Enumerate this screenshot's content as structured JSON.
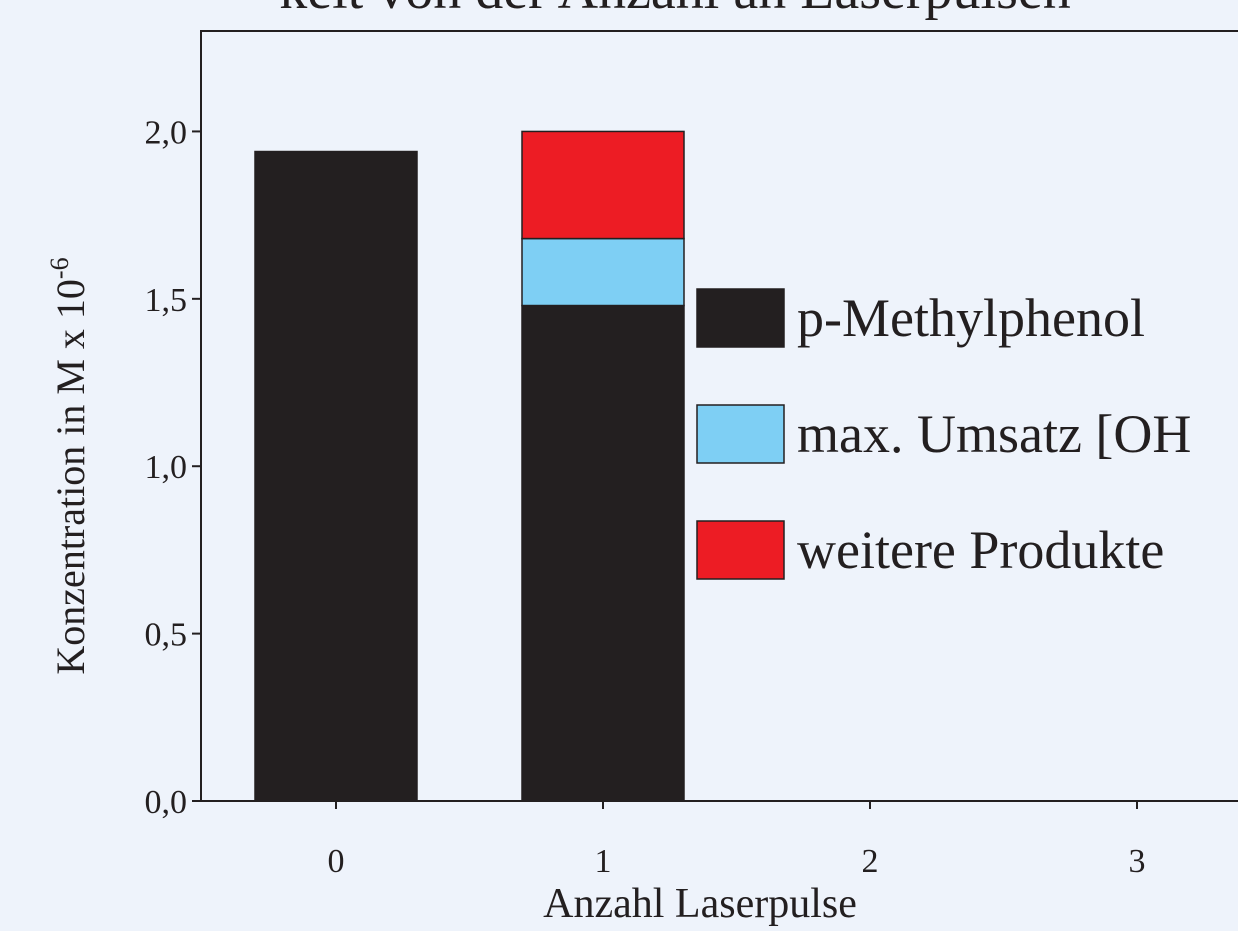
{
  "chart_data": {
    "type": "stacked_bar",
    "title": "keit von der Anzahl an Laserpulsen",
    "xlabel": "Anzahl Laserpulse",
    "ylabel": "Konzentration in M x 10",
    "ylabel_exponent": "-6",
    "categories": [
      "0",
      "1",
      "2",
      "3"
    ],
    "series": [
      {
        "name": "p-Methylphenol",
        "color": "#231f20",
        "values": [
          1.94,
          1.48,
          null,
          null
        ]
      },
      {
        "name": "max. Umsatz [OH",
        "color": "#7ecff4",
        "values": [
          null,
          0.2,
          null,
          null
        ]
      },
      {
        "name": "weitere Produkte",
        "color": "#ed1c24",
        "values": [
          null,
          0.32,
          null,
          null
        ]
      }
    ],
    "ylim": [
      0,
      2.3
    ],
    "yticks": [
      {
        "value": 0,
        "label": "0,0"
      },
      {
        "value": 0.5,
        "label": "0,5"
      },
      {
        "value": 1,
        "label": "1,0"
      },
      {
        "value": 1.5,
        "label": "1,5"
      },
      {
        "value": 2,
        "label": "2,0"
      }
    ]
  }
}
